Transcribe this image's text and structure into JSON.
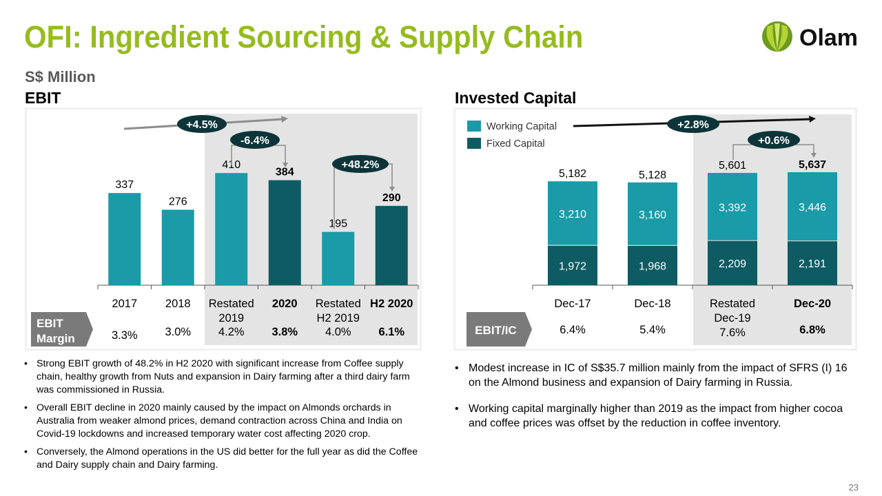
{
  "title": "OFI: Ingredient Sourcing & Supply Chain",
  "unit": "S$ Million",
  "brand": "Olam",
  "page_number": "23",
  "colors": {
    "title": "#96bb1f",
    "working_capital": "#1b9aa8",
    "fixed_capital": "#0f5b63",
    "bubble": "#0d3539",
    "shade": "#e4e4e4"
  },
  "chart_data": [
    {
      "type": "bar",
      "title": "EBIT",
      "categories": [
        "2017",
        "2018",
        "Restated 2019",
        "2020",
        "Restated H2 2019",
        "H2 2020"
      ],
      "category_lines": [
        [
          "2017"
        ],
        [
          "2018"
        ],
        [
          "Restated",
          "2019"
        ],
        [
          "2020"
        ],
        [
          "Restated",
          "H2 2019"
        ],
        [
          "H2 2020"
        ]
      ],
      "values": [
        337,
        276,
        410,
        384,
        195,
        290
      ],
      "value_labels": [
        "337",
        "276",
        "410",
        "384",
        "195",
        "290"
      ],
      "bold": [
        false,
        false,
        false,
        true,
        false,
        true
      ],
      "bar_color": [
        "light",
        "light",
        "light",
        "dark",
        "light",
        "dark"
      ],
      "row_label": [
        "EBIT",
        "Margin"
      ],
      "margins": [
        "3.3%",
        "3.0%",
        "4.2%",
        "3.8%",
        "4.0%",
        "6.1%"
      ],
      "annotations": [
        {
          "text": "+4.5%",
          "from": "2017",
          "to": "2020"
        },
        {
          "text": "-6.4%",
          "from": "Restated 2019",
          "to": "2020"
        },
        {
          "text": "+48.2%",
          "from": "Restated H2 2019",
          "to": "H2 2020"
        }
      ]
    },
    {
      "type": "bar",
      "stacked": true,
      "title": "Invested Capital",
      "categories": [
        "Dec-17",
        "Dec-18",
        "Restated Dec-19",
        "Dec-20"
      ],
      "category_lines": [
        [
          "Dec-17"
        ],
        [
          "Dec-18"
        ],
        [
          "Restated",
          "Dec-19"
        ],
        [
          "Dec-20"
        ]
      ],
      "series": [
        {
          "name": "Fixed Capital",
          "values": [
            1972,
            1968,
            2209,
            2191
          ],
          "labels": [
            "1,972",
            "1,968",
            "2,209",
            "2,191"
          ]
        },
        {
          "name": "Working Capital",
          "values": [
            3210,
            3160,
            3392,
            3446
          ],
          "labels": [
            "3,210",
            "3,160",
            "3,392",
            "3,446"
          ]
        }
      ],
      "totals": [
        5182,
        5128,
        5601,
        5637
      ],
      "total_labels": [
        "5,182",
        "5,128",
        "5,601",
        "5,637"
      ],
      "bold": [
        false,
        false,
        false,
        true
      ],
      "legend": [
        "Working Capital",
        "Fixed Capital"
      ],
      "legend_position": "top-left",
      "row_label": "EBIT/IC",
      "ratios": [
        "6.4%",
        "5.4%",
        "7.6%",
        "6.8%"
      ],
      "annotations": [
        {
          "text": "+2.8%",
          "from": "Dec-17",
          "to": "Dec-20"
        },
        {
          "text": "+0.6%",
          "from": "Restated Dec-19",
          "to": "Dec-20"
        }
      ]
    }
  ],
  "left_bullets": [
    "Strong EBIT growth of 48.2% in H2 2020 with significant increase from Coffee supply chain, healthy growth from Nuts and expansion in Dairy farming after a third dairy farm was commissioned in Russia.",
    "Overall EBIT decline in 2020 mainly caused by the impact on Almonds orchards in Australia from weaker almond prices, demand contraction across China and India on Covid-19 lockdowns and increased temporary water cost affecting 2020 crop.",
    "Conversely, the Almond operations in the US did better for the full year as did the Coffee and Dairy supply chain and Dairy farming."
  ],
  "right_bullets": [
    "Modest increase in IC of S$35.7 million mainly from the impact of SFRS (I) 16 on the Almond business and expansion of Dairy farming in Russia.",
    "Working capital marginally higher than 2019 as the impact from higher cocoa and coffee prices was offset by the reduction in coffee inventory."
  ]
}
